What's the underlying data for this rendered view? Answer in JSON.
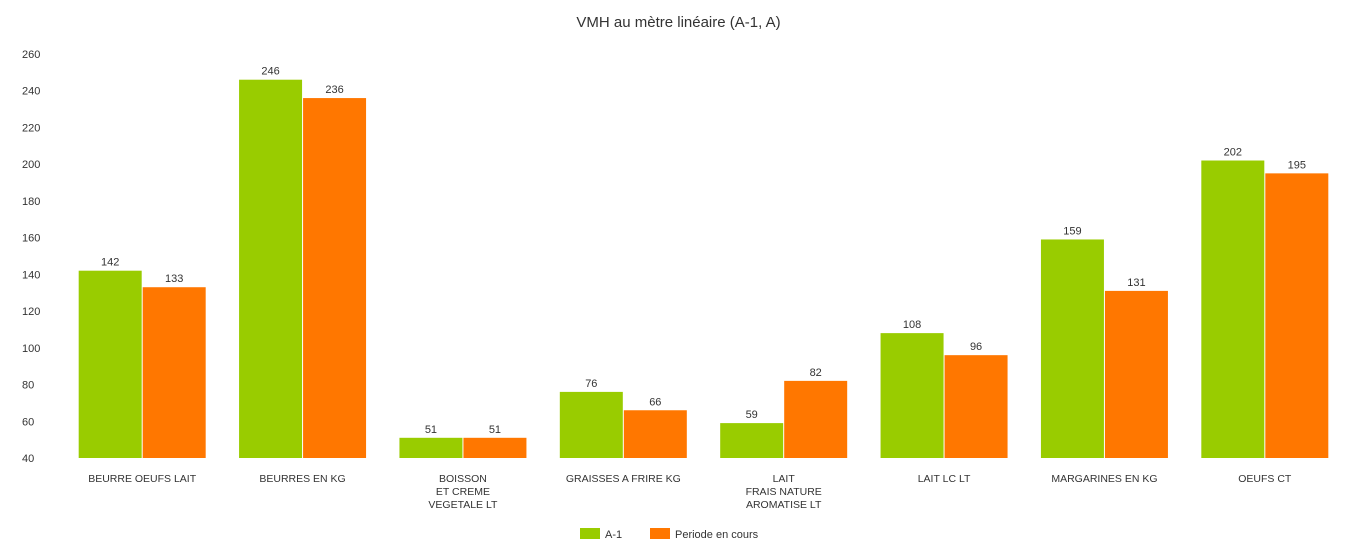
{
  "chart_data": {
    "type": "bar",
    "title": "VMH au mètre linéaire (A-1, A)",
    "xlabel": "",
    "ylabel": "",
    "ylim": [
      40,
      260
    ],
    "yticks": [
      40,
      60,
      80,
      100,
      120,
      140,
      160,
      180,
      200,
      220,
      240,
      260
    ],
    "grid": false,
    "legend_position": "bottom-center",
    "categories": [
      [
        "BEURRE OEUFS LAIT"
      ],
      [
        "BEURRES EN KG"
      ],
      [
        "BOISSON",
        "ET CREME",
        "VEGETALE LT"
      ],
      [
        "GRAISSES A FRIRE KG"
      ],
      [
        "LAIT",
        "FRAIS NATURE",
        "AROMATISE LT"
      ],
      [
        "LAIT LC LT"
      ],
      [
        "MARGARINES EN KG"
      ],
      [
        "OEUFS CT"
      ]
    ],
    "series": [
      {
        "name": "A-1",
        "color": "#99cc00",
        "values": [
          142,
          246,
          51,
          76,
          59,
          108,
          159,
          202
        ]
      },
      {
        "name": "Periode en cours",
        "color": "#ff7700",
        "values": [
          133,
          236,
          51,
          66,
          82,
          96,
          131,
          195
        ]
      }
    ]
  }
}
